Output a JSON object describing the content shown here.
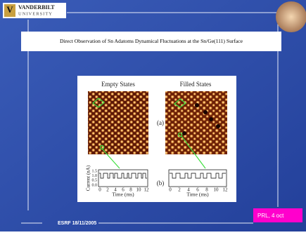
{
  "header": {
    "logo_top": "VANDERBILT",
    "logo_bottom": "UNIVERSITY"
  },
  "title": "Direct Observation of Sn Adatoms Dynamical Fluctuations at the Sn/Ge(111) Surface",
  "figure": {
    "panels": [
      {
        "label": "Empty States"
      },
      {
        "label": "Filled States"
      }
    ],
    "panel_a": "(a)",
    "panel_b": "(b)",
    "plots": [
      {
        "y_label": "Current (nA)",
        "y_ticks": [
          "1.5",
          "1.0",
          "0.5",
          "0.0"
        ],
        "x_ticks": [
          "0",
          "2",
          "4",
          "6",
          "8",
          "10",
          "12"
        ],
        "x_label": "Time (ms)"
      },
      {
        "x_ticks": [
          "0",
          "2",
          "4",
          "6",
          "8",
          "10",
          "12"
        ],
        "x_label": "Time (ms)"
      }
    ]
  },
  "footer": {
    "date": "ESRF 18/11/2005",
    "reference": "PRL, 4 oct"
  }
}
